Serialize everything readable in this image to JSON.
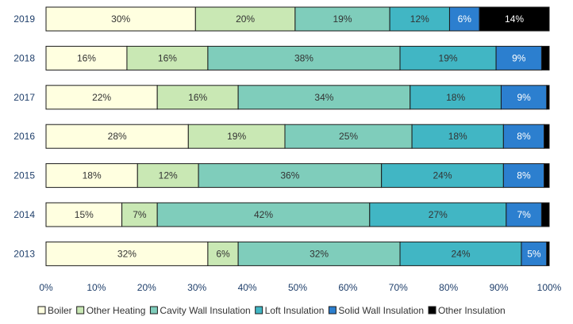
{
  "chart_data": {
    "type": "bar",
    "orientation": "horizontal",
    "stacked": "percent",
    "categories": [
      "2019",
      "2018",
      "2017",
      "2016",
      "2015",
      "2014",
      "2013"
    ],
    "series": [
      {
        "name": "Boiler",
        "color": "#ffffe0",
        "values": [
          30,
          16,
          22,
          28,
          18,
          15,
          32
        ]
      },
      {
        "name": "Other Heating",
        "color": "#c9e8b4",
        "values": [
          20,
          16,
          16,
          19,
          12,
          7,
          6
        ]
      },
      {
        "name": "Cavity Wall Insulation",
        "color": "#7fcdbb",
        "values": [
          19,
          38,
          34,
          25,
          36,
          42,
          32
        ]
      },
      {
        "name": "Loft Insulation",
        "color": "#41b6c4",
        "values": [
          12,
          19,
          18,
          18,
          24,
          27,
          24
        ]
      },
      {
        "name": "Solid Wall Insulation",
        "color": "#2c7fcf",
        "values": [
          6,
          9,
          9,
          8,
          8,
          7,
          5
        ]
      },
      {
        "name": "Other Insulation",
        "color": "#000000",
        "values": [
          14,
          1.5,
          0.5,
          1,
          1,
          1.5,
          0.5
        ]
      }
    ],
    "data_labels": [
      [
        "30%",
        "20%",
        "19%",
        "12%",
        "6%",
        "14%"
      ],
      [
        "16%",
        "16%",
        "38%",
        "19%",
        "9%",
        ""
      ],
      [
        "22%",
        "16%",
        "34%",
        "18%",
        "9%",
        ""
      ],
      [
        "28%",
        "19%",
        "25%",
        "18%",
        "8%",
        ""
      ],
      [
        "18%",
        "12%",
        "36%",
        "24%",
        "8%",
        ""
      ],
      [
        "15%",
        "7%",
        "42%",
        "27%",
        "7%",
        ""
      ],
      [
        "32%",
        "6%",
        "32%",
        "24%",
        "5%",
        ""
      ]
    ],
    "x_ticks": [
      "0%",
      "10%",
      "20%",
      "30%",
      "40%",
      "50%",
      "60%",
      "70%",
      "80%",
      "90%",
      "100%"
    ],
    "xlim": [
      0,
      100
    ],
    "grid": false,
    "legend_position": "bottom",
    "title": "",
    "xlabel": "",
    "ylabel": ""
  }
}
